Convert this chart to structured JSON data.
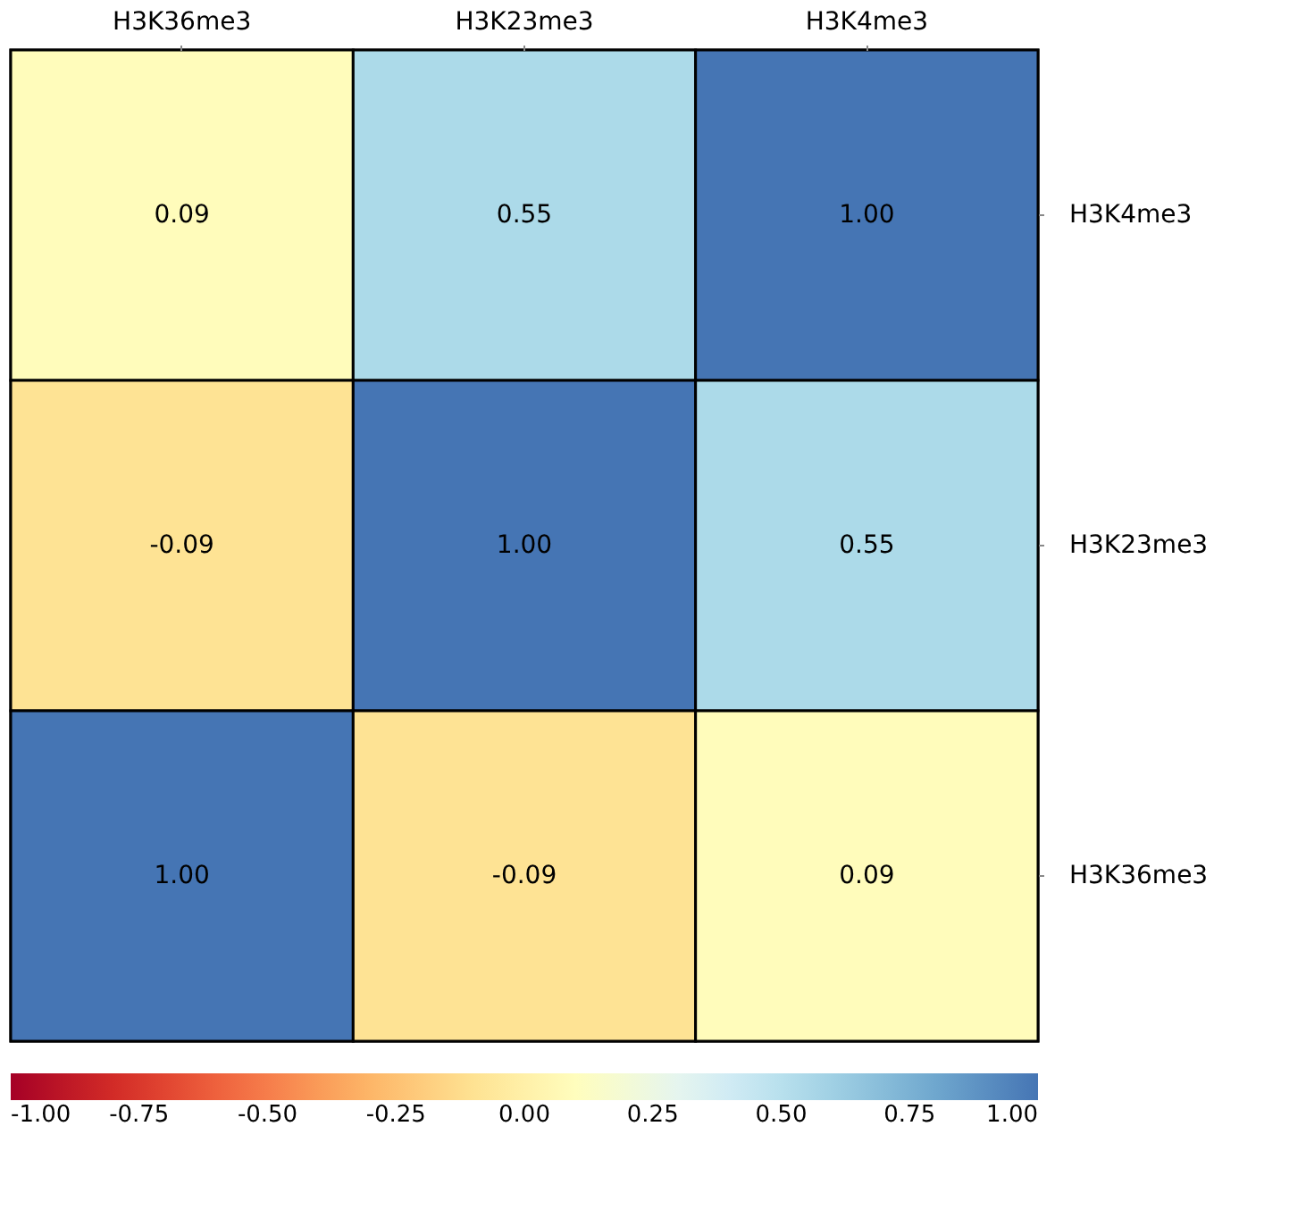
{
  "chart_data": {
    "type": "heatmap",
    "categories": [
      "H3K36me3",
      "H3K23me3",
      "H3K4me3"
    ],
    "y_categories": [
      "H3K4me3",
      "H3K23me3",
      "H3K36me3"
    ],
    "cells": [
      [
        0.09,
        0.55,
        1.0
      ],
      [
        -0.09,
        1.0,
        0.55
      ],
      [
        1.0,
        -0.09,
        0.09
      ]
    ],
    "cell_labels": [
      [
        "0.09",
        "0.55",
        "1.00"
      ],
      [
        "-0.09",
        "1.00",
        "0.55"
      ],
      [
        "1.00",
        "-0.09",
        "0.09"
      ]
    ],
    "clim": [
      -1,
      1
    ],
    "cticks": [
      {
        "value": -1,
        "label": "-1.00"
      },
      {
        "value": -0.75,
        "label": "-0.75"
      },
      {
        "value": -0.5,
        "label": "-0.50"
      },
      {
        "value": -0.25,
        "label": "-0.25"
      },
      {
        "value": 0,
        "label": "0.00"
      },
      {
        "value": 0.25,
        "label": "0.25"
      },
      {
        "value": 0.5,
        "label": "0.50"
      },
      {
        "value": 0.75,
        "label": "0.75"
      },
      {
        "value": 1,
        "label": "1.00"
      }
    ]
  }
}
